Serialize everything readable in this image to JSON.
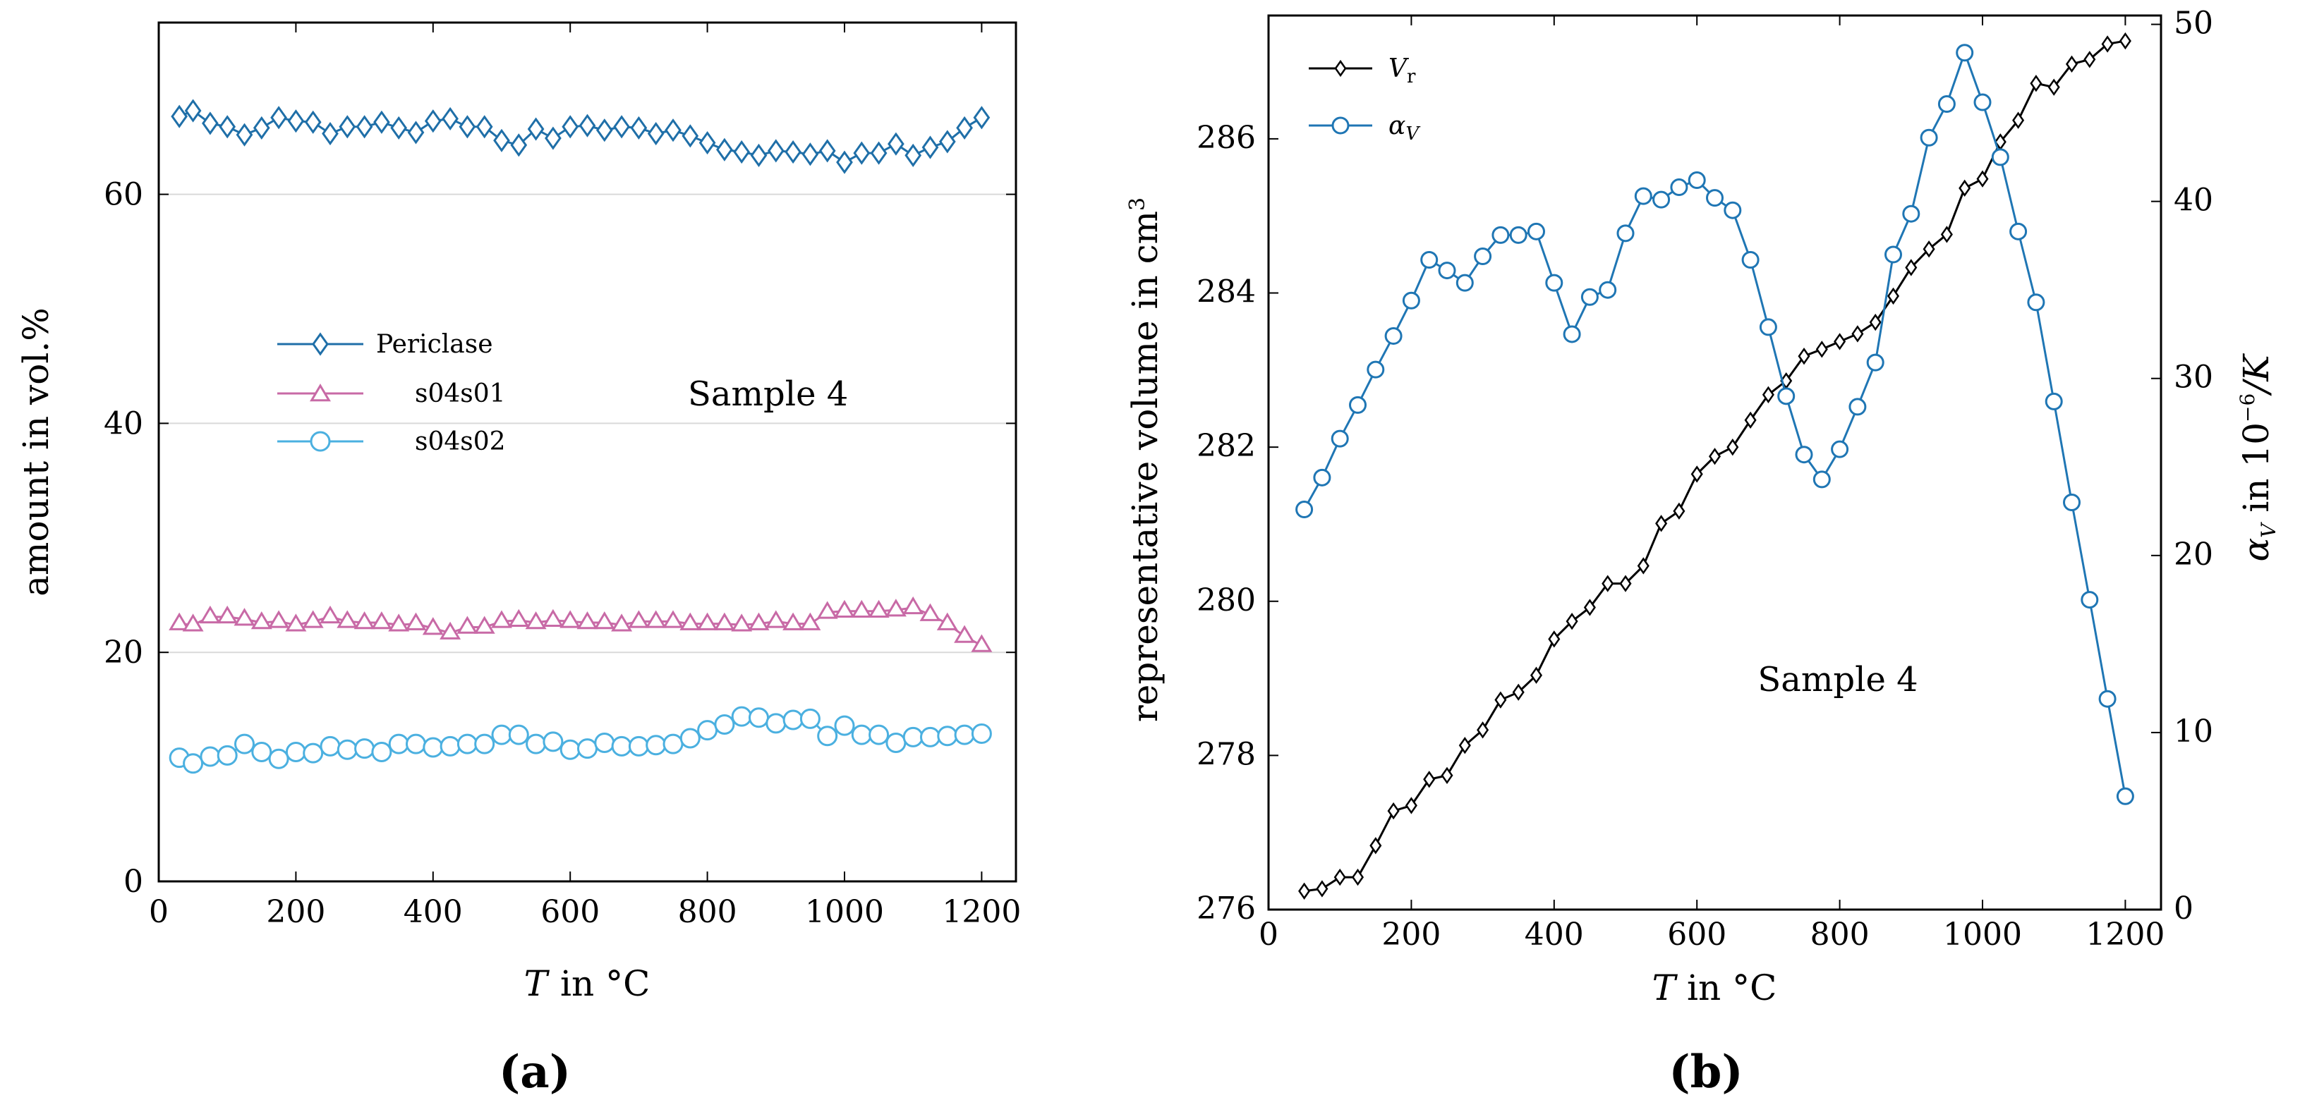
{
  "colors": {
    "periclase": "#1f6fa8",
    "s04s01": "#c86aa6",
    "s04s02": "#4bb0e0",
    "vr": "#000000",
    "alpha": "#1f76b4"
  },
  "panels": {
    "a": "(a)",
    "b": "(b)"
  },
  "chart_data": [
    {
      "type": "line",
      "panel": "(a)",
      "annotation": "Sample 4",
      "xlabel_symbol": "T",
      "xlabel_rest": "in °C",
      "ylabel": "amount in vol.%",
      "xlim": [
        0,
        1250
      ],
      "ylim": [
        0,
        75
      ],
      "xticks": [
        0,
        200,
        400,
        600,
        800,
        1000,
        1200
      ],
      "yticks": [
        0,
        20,
        40,
        60
      ],
      "legend_position": "center-left",
      "x": [
        30,
        50,
        75,
        100,
        125,
        150,
        175,
        200,
        225,
        250,
        275,
        300,
        325,
        350,
        375,
        400,
        425,
        450,
        475,
        500,
        525,
        550,
        575,
        600,
        625,
        650,
        675,
        700,
        725,
        750,
        775,
        800,
        825,
        850,
        875,
        900,
        925,
        950,
        975,
        1000,
        1025,
        1050,
        1075,
        1100,
        1125,
        1150,
        1175,
        1200
      ],
      "series": [
        {
          "name": "Periclase",
          "marker": "diamond",
          "values": [
            66.8,
            67.3,
            66.2,
            65.9,
            65.2,
            65.8,
            66.7,
            66.4,
            66.3,
            65.3,
            65.9,
            65.9,
            66.3,
            65.8,
            65.4,
            66.4,
            66.6,
            65.9,
            65.9,
            64.7,
            64.3,
            65.7,
            64.9,
            65.9,
            66.0,
            65.6,
            65.9,
            65.8,
            65.3,
            65.6,
            65.1,
            64.5,
            63.9,
            63.7,
            63.4,
            63.8,
            63.7,
            63.5,
            63.8,
            62.8,
            63.6,
            63.6,
            64.4,
            63.4,
            64.1,
            64.6,
            65.8,
            66.7
          ]
        },
        {
          "name": "s04s01",
          "marker": "triangle",
          "values": [
            22.5,
            22.4,
            23.1,
            23.1,
            22.9,
            22.6,
            22.7,
            22.4,
            22.7,
            23.1,
            22.7,
            22.6,
            22.6,
            22.4,
            22.5,
            22.1,
            21.7,
            22.2,
            22.2,
            22.7,
            22.8,
            22.6,
            22.8,
            22.7,
            22.6,
            22.6,
            22.4,
            22.7,
            22.7,
            22.7,
            22.5,
            22.5,
            22.5,
            22.4,
            22.5,
            22.7,
            22.5,
            22.5,
            23.5,
            23.6,
            23.6,
            23.6,
            23.7,
            23.9,
            23.3,
            22.5,
            21.4,
            20.6
          ]
        },
        {
          "name": "s04s02",
          "marker": "circle",
          "values": [
            10.8,
            10.3,
            10.9,
            11.0,
            12.0,
            11.3,
            10.7,
            11.3,
            11.2,
            11.8,
            11.5,
            11.6,
            11.3,
            12.0,
            12.0,
            11.7,
            11.8,
            12.0,
            12.0,
            12.8,
            12.8,
            12.0,
            12.2,
            11.5,
            11.6,
            12.1,
            11.8,
            11.8,
            11.9,
            12.0,
            12.5,
            13.2,
            13.7,
            14.4,
            14.3,
            13.8,
            14.1,
            14.2,
            12.7,
            13.6,
            12.8,
            12.8,
            12.1,
            12.6,
            12.6,
            12.7,
            12.8,
            12.9
          ]
        }
      ]
    },
    {
      "type": "line",
      "panel": "(b)",
      "annotation": "Sample 4",
      "xlabel_symbol": "T",
      "xlabel_rest": "in °C",
      "ylabel_left": "representative volume in cm",
      "ylabel_left_sup": "3",
      "ylabel_right": "α",
      "ylabel_right_sub": "V",
      "ylabel_right_rest": " in 10",
      "ylabel_right_sup": "−6",
      "ylabel_right_tail": "/K",
      "xlim": [
        0,
        1250
      ],
      "ylim_left": [
        276,
        287.6
      ],
      "ylim_right": [
        0,
        50.5
      ],
      "xticks": [
        0,
        200,
        400,
        600,
        800,
        1000,
        1200
      ],
      "yticks_left": [
        276,
        278,
        280,
        282,
        284,
        286
      ],
      "yticks_right": [
        0,
        10,
        20,
        30,
        40,
        50
      ],
      "legend_position": "top-left",
      "x": [
        50,
        75,
        100,
        125,
        150,
        175,
        200,
        225,
        250,
        275,
        300,
        325,
        350,
        375,
        400,
        425,
        450,
        475,
        500,
        525,
        550,
        575,
        600,
        625,
        650,
        675,
        700,
        725,
        750,
        775,
        800,
        825,
        850,
        875,
        900,
        925,
        950,
        975,
        1000,
        1025,
        1050,
        1075,
        1100,
        1125,
        1150,
        1175,
        1200
      ],
      "series": [
        {
          "name": "V",
          "name_sub": "r",
          "axis": "left",
          "marker": "diamond",
          "values": [
            276.24,
            276.27,
            276.42,
            276.42,
            276.83,
            277.28,
            277.35,
            277.69,
            277.74,
            278.13,
            278.33,
            278.72,
            278.82,
            279.04,
            279.51,
            279.74,
            279.92,
            280.23,
            280.23,
            280.46,
            281.01,
            281.17,
            281.65,
            281.88,
            282.0,
            282.35,
            282.68,
            282.86,
            283.18,
            283.27,
            283.37,
            283.47,
            283.62,
            283.96,
            284.33,
            284.57,
            284.76,
            285.36,
            285.48,
            285.96,
            286.24,
            286.72,
            286.67,
            286.97,
            287.03,
            287.23,
            287.27
          ]
        },
        {
          "name": "α",
          "name_sub": "V",
          "axis": "right",
          "marker": "circle",
          "values": [
            22.6,
            24.4,
            26.6,
            28.5,
            30.5,
            32.4,
            34.4,
            36.7,
            36.1,
            35.4,
            36.9,
            38.1,
            38.1,
            38.3,
            35.4,
            32.5,
            34.6,
            35.0,
            38.2,
            40.3,
            40.1,
            40.8,
            41.2,
            40.2,
            39.5,
            36.7,
            32.9,
            29.0,
            25.7,
            24.3,
            26.0,
            28.4,
            30.9,
            37.0,
            39.3,
            43.6,
            45.5,
            48.4,
            45.6,
            42.5,
            38.3,
            34.3,
            28.7,
            23.0,
            17.5,
            11.9,
            6.4
          ]
        }
      ]
    }
  ]
}
